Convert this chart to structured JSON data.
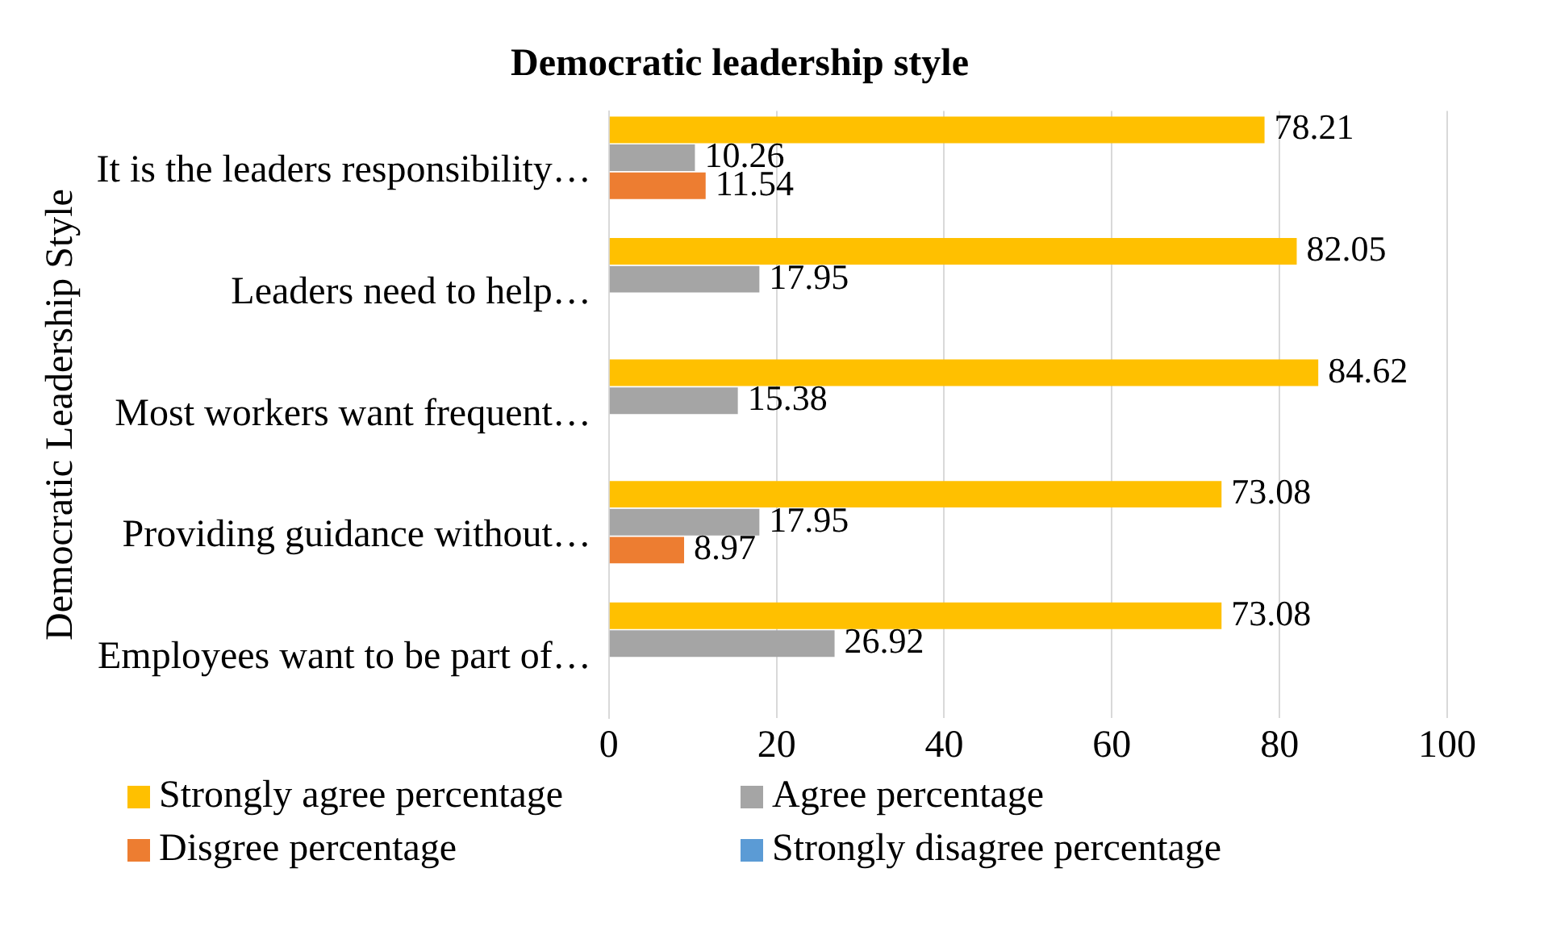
{
  "chart_data": {
    "type": "bar",
    "orientation": "horizontal",
    "title": "Democratic leadership style",
    "ylabel": "Democratic Leadership Style",
    "categories": [
      "It is the leaders responsibility…",
      "Leaders need to help…",
      "Most workers want frequent…",
      "Providing guidance without…",
      "Employees want to be part of…"
    ],
    "series": [
      {
        "name": "Strongly agree percentage",
        "color": "#ffc000",
        "values": [
          78.21,
          82.05,
          84.62,
          73.08,
          73.08
        ]
      },
      {
        "name": "Agree percentage",
        "color": "#a5a5a5",
        "values": [
          10.26,
          17.95,
          15.38,
          17.95,
          26.92
        ]
      },
      {
        "name": "Disgree percentage",
        "color": "#ed7d31",
        "values": [
          11.54,
          null,
          null,
          8.97,
          null
        ]
      },
      {
        "name": "Strongly disagree percentage",
        "color": "#5b9bd5",
        "values": [
          null,
          null,
          null,
          null,
          null
        ]
      }
    ],
    "xlim": [
      0,
      100
    ],
    "xticks": [
      0,
      20,
      40,
      60,
      80,
      100
    ],
    "grid": "x",
    "legend": "bottom",
    "data_labels": true
  }
}
